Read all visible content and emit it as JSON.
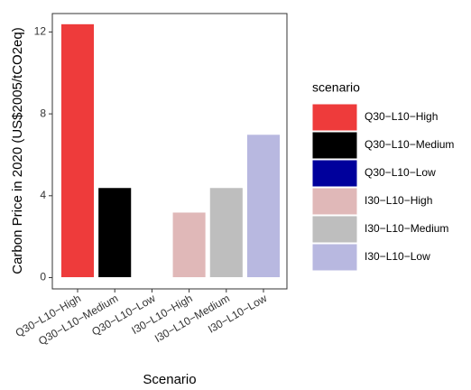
{
  "chart_data": {
    "type": "bar",
    "x_label": "Scenario",
    "y_label": "Carbon Price in 2020 (US$2005/tCO2eq)",
    "categories": [
      "Q30−L10−High",
      "Q30−L10−Medium",
      "Q30−L10−Low",
      "I30−L10−High",
      "I30−L10−Medium",
      "I30−L10−Low"
    ],
    "values": [
      12.4,
      4.4,
      0,
      3.2,
      4.4,
      7.0
    ],
    "colors": [
      "#EE3B3B",
      "#000000",
      "#00009C",
      "#E0B8B8",
      "#BEBEBE",
      "#B8B8E0"
    ],
    "ylim": [
      -0.55,
      12.9
    ],
    "yticks": [
      0,
      4,
      8,
      12
    ],
    "legend": {
      "title": "scenario",
      "position": "right"
    },
    "grid": false
  }
}
